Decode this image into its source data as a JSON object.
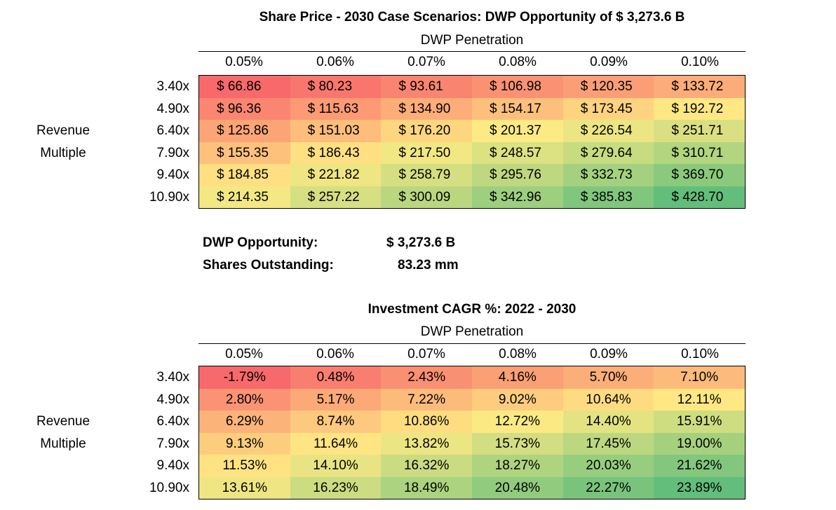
{
  "axis": {
    "col_header": "DWP Penetration",
    "row_header_lines": [
      "Revenue",
      "Multiple"
    ],
    "columns": [
      "0.05%",
      "0.06%",
      "0.07%",
      "0.08%",
      "0.09%",
      "0.10%"
    ],
    "rows": [
      "3.40x",
      "4.90x",
      "6.40x",
      "7.90x",
      "9.40x",
      "10.90x"
    ]
  },
  "share_price_table": {
    "title": "Share Price - 2030 Case Scenarios: DWP Opportunity of $ 3,273.6 B",
    "values": [
      [
        "$ 66.86",
        "$ 80.23",
        "$ 93.61",
        "$ 106.98",
        "$ 120.35",
        "$ 133.72"
      ],
      [
        "$ 96.36",
        "$ 115.63",
        "$ 134.90",
        "$ 154.17",
        "$ 173.45",
        "$ 192.72"
      ],
      [
        "$ 125.86",
        "$ 151.03",
        "$ 176.20",
        "$ 201.37",
        "$ 226.54",
        "$ 251.71"
      ],
      [
        "$ 155.35",
        "$ 186.43",
        "$ 217.50",
        "$ 248.57",
        "$ 279.64",
        "$ 310.71"
      ],
      [
        "$ 184.85",
        "$ 221.82",
        "$ 258.79",
        "$ 295.76",
        "$ 332.73",
        "$ 369.70"
      ],
      [
        "$ 214.35",
        "$ 257.22",
        "$ 300.09",
        "$ 342.96",
        "$ 385.83",
        "$ 428.70"
      ]
    ],
    "numeric": [
      [
        66.86,
        80.23,
        93.61,
        106.98,
        120.35,
        133.72
      ],
      [
        96.36,
        115.63,
        134.9,
        154.17,
        173.45,
        192.72
      ],
      [
        125.86,
        151.03,
        176.2,
        201.37,
        226.54,
        251.71
      ],
      [
        155.35,
        186.43,
        217.5,
        248.57,
        279.64,
        310.71
      ],
      [
        184.85,
        221.82,
        258.79,
        295.76,
        332.73,
        369.7
      ],
      [
        214.35,
        257.22,
        300.09,
        342.96,
        385.83,
        428.7
      ]
    ]
  },
  "info": {
    "opportunity_label": "DWP Opportunity:",
    "opportunity_value": "$ 3,273.6 B",
    "shares_label": "Shares Outstanding:",
    "shares_value": "83.23 mm"
  },
  "cagr_table": {
    "title": "Investment CAGR %: 2022 - 2030",
    "values": [
      [
        "-1.79%",
        "0.48%",
        "2.43%",
        "4.16%",
        "5.70%",
        "7.10%"
      ],
      [
        "2.80%",
        "5.17%",
        "7.22%",
        "9.02%",
        "10.64%",
        "12.11%"
      ],
      [
        "6.29%",
        "8.74%",
        "10.86%",
        "12.72%",
        "14.40%",
        "15.91%"
      ],
      [
        "9.13%",
        "11.64%",
        "13.82%",
        "15.73%",
        "17.45%",
        "19.00%"
      ],
      [
        "11.53%",
        "14.10%",
        "16.32%",
        "18.27%",
        "20.03%",
        "21.62%"
      ],
      [
        "13.61%",
        "16.23%",
        "18.49%",
        "20.48%",
        "22.27%",
        "23.89%"
      ]
    ],
    "numeric": [
      [
        -1.79,
        0.48,
        2.43,
        4.16,
        5.7,
        7.1
      ],
      [
        2.8,
        5.17,
        7.22,
        9.02,
        10.64,
        12.11
      ],
      [
        6.29,
        8.74,
        10.86,
        12.72,
        14.4,
        15.91
      ],
      [
        9.13,
        11.64,
        13.82,
        15.73,
        17.45,
        19.0
      ],
      [
        11.53,
        14.1,
        16.32,
        18.27,
        20.03,
        21.62
      ],
      [
        13.61,
        16.23,
        18.49,
        20.48,
        22.27,
        23.89
      ]
    ]
  },
  "colors": {
    "low": "#f8696b",
    "mid": "#ffeb84",
    "high": "#63be7b"
  }
}
